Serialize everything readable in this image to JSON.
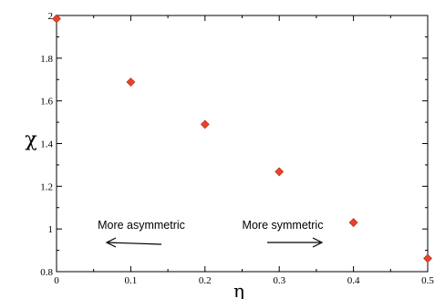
{
  "chart_data": {
    "type": "scatter",
    "title": "",
    "xlabel": "η",
    "ylabel": "χ",
    "xlim": [
      0,
      0.5
    ],
    "ylim": [
      0.8,
      2.0
    ],
    "grid": false,
    "x_ticks": [
      "0",
      "0.1",
      "0.2",
      "0.3",
      "0.4",
      "0.5"
    ],
    "y_ticks": [
      "0.8",
      "1",
      "1.2",
      "1.4",
      "1.6",
      "1.8",
      "2"
    ],
    "series": [
      {
        "x": [
          0,
          0.1,
          0.2,
          0.3,
          0.4,
          0.5
        ],
        "y": [
          1.985,
          1.688,
          1.49,
          1.268,
          1.03,
          0.862
        ]
      }
    ],
    "marker": "diamond",
    "marker_color": "#e8432a",
    "annotations": [
      {
        "text": "More asymmetric",
        "arrow_direction": "left"
      },
      {
        "text": "More symmetric",
        "arrow_direction": "right"
      }
    ]
  }
}
